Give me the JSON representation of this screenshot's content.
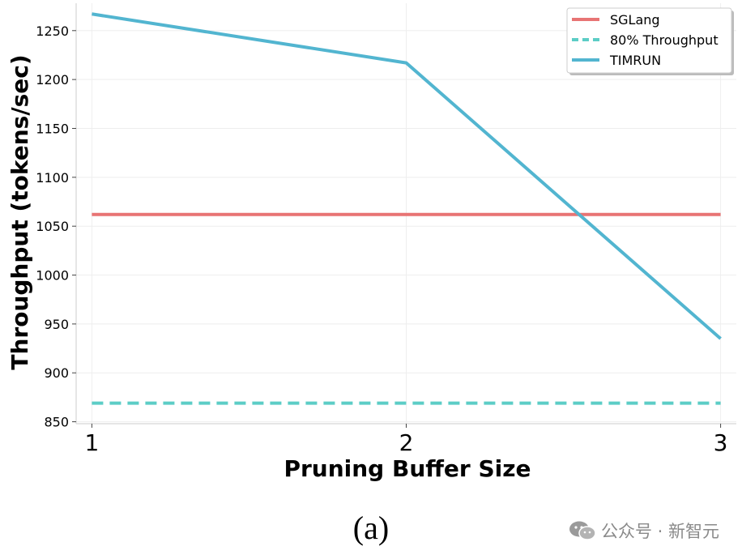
{
  "chart_data": {
    "type": "line",
    "xlabel": "Pruning Buffer Size",
    "ylabel": "Throughput (tokens/sec)",
    "x": [
      1,
      2,
      3
    ],
    "xticks": [
      "1",
      "2",
      "3"
    ],
    "yticks": [
      850,
      900,
      950,
      1000,
      1050,
      1100,
      1150,
      1200,
      1250
    ],
    "xlim": [
      0.95,
      3.05
    ],
    "ylim": [
      848,
      1278
    ],
    "grid": true,
    "legend_position": "top-right",
    "series": [
      {
        "name": "SGLang",
        "values": [
          1062,
          1062,
          1062
        ],
        "color": "#e87474",
        "style": "solid"
      },
      {
        "name": "80% Throughput",
        "values": [
          869,
          869,
          869
        ],
        "color": "#5ccdc6",
        "style": "dashed"
      },
      {
        "name": "TIMRUN",
        "values": [
          1267,
          1217,
          935
        ],
        "color": "#52b5d0",
        "style": "solid"
      }
    ]
  },
  "caption": "(a)",
  "watermark": {
    "text": "公众号 · 新智元",
    "icon": "wechat-icon"
  }
}
